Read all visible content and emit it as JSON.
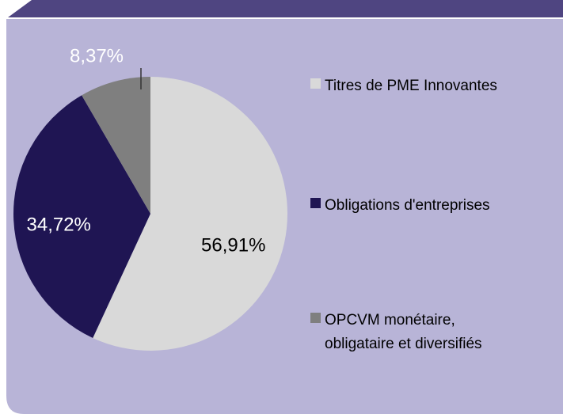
{
  "chart_data": {
    "type": "pie",
    "categories": [
      "Titres de PME Innovantes",
      "Obligations d'entreprises",
      "OPCVM monétaire, obligataire et diversifiés"
    ],
    "values": [
      56.91,
      34.72,
      8.37
    ],
    "value_labels": [
      "56,91%",
      "34,72%",
      "8,37%"
    ],
    "colors": [
      "#d9d9d9",
      "#1f1553",
      "#7f7f7f"
    ],
    "legend": "right"
  }
}
